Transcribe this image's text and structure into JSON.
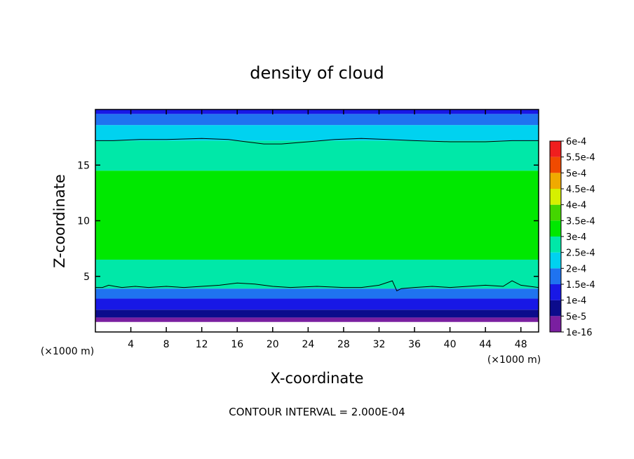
{
  "chart_data": {
    "type": "heatmap",
    "title": "density of cloud",
    "xlabel": "X-coordinate",
    "ylabel": "Z-coordinate",
    "x_unit": "(×1000 m)",
    "z_unit": "(×1000 m)",
    "xlim": [
      0,
      50
    ],
    "zlim": [
      0,
      20
    ],
    "x_ticks": [
      4,
      8,
      12,
      16,
      20,
      24,
      28,
      32,
      36,
      40,
      44,
      48
    ],
    "z_ticks": [
      5,
      10,
      15
    ],
    "footer": "CONTOUR INTERVAL = 2.000E-04",
    "colorbar": {
      "levels": [
        "1e-16",
        "5e-5",
        "1e-4",
        "1.5e-4",
        "2e-4",
        "2.5e-4",
        "3e-4",
        "3.5e-4",
        "4e-4",
        "4.5e-4",
        "5e-4",
        "5.5e-4",
        "6e-4"
      ],
      "colors": [
        "#7a1fa0",
        "#0c0c8c",
        "#1818e6",
        "#1f73f0",
        "#00d2f0",
        "#00e8a8",
        "#00e800",
        "#44d600",
        "#d6f000",
        "#f0aa00",
        "#f04a00",
        "#f01e1e",
        "#f08a8a"
      ]
    },
    "contours": [
      {
        "value": "2.000E-04",
        "points": [
          [
            0,
            17.2
          ],
          [
            2,
            17.2
          ],
          [
            5,
            17.3
          ],
          [
            8,
            17.3
          ],
          [
            12,
            17.4
          ],
          [
            15,
            17.3
          ],
          [
            17,
            17.1
          ],
          [
            19,
            16.9
          ],
          [
            21,
            16.9
          ],
          [
            24,
            17.1
          ],
          [
            27,
            17.3
          ],
          [
            30,
            17.4
          ],
          [
            33,
            17.3
          ],
          [
            36,
            17.2
          ],
          [
            40,
            17.1
          ],
          [
            44,
            17.1
          ],
          [
            47,
            17.2
          ],
          [
            50,
            17.2
          ]
        ]
      },
      {
        "value": "2.000E-04",
        "points": [
          [
            0,
            4.0
          ],
          [
            0.8,
            4.0
          ],
          [
            1.5,
            4.2
          ],
          [
            2.2,
            4.1
          ],
          [
            3,
            4.0
          ],
          [
            4.5,
            4.1
          ],
          [
            6,
            4.0
          ],
          [
            8,
            4.1
          ],
          [
            10,
            4.0
          ],
          [
            12,
            4.1
          ],
          [
            14,
            4.2
          ],
          [
            16,
            4.4
          ],
          [
            18,
            4.3
          ],
          [
            20,
            4.1
          ],
          [
            22,
            4.0
          ],
          [
            25,
            4.1
          ],
          [
            28,
            4.0
          ],
          [
            30,
            4.0
          ],
          [
            32,
            4.2
          ],
          [
            33.5,
            4.6
          ],
          [
            34,
            3.7
          ],
          [
            34.5,
            3.9
          ],
          [
            36,
            4.0
          ],
          [
            38,
            4.1
          ],
          [
            40,
            4.0
          ],
          [
            42,
            4.1
          ],
          [
            44,
            4.2
          ],
          [
            46,
            4.1
          ],
          [
            47,
            4.6
          ],
          [
            48,
            4.2
          ],
          [
            50,
            4.0
          ]
        ]
      }
    ],
    "field": {
      "description_levels": "cloud density bands by height",
      "bands": [
        {
          "z_from": 0.9,
          "z_to": 1.3,
          "level_index": 0
        },
        {
          "z_from": 1.3,
          "z_to": 2.0,
          "level_index": 1
        },
        {
          "z_from": 2.0,
          "z_to": 3.0,
          "level_index": 2
        },
        {
          "z_from": 3.0,
          "z_to": 3.9,
          "level_index": 3
        },
        {
          "z_from": 3.9,
          "z_to": 6.5,
          "level_index": 5
        },
        {
          "z_from": 6.5,
          "z_to": 14.5,
          "level_index": 6
        },
        {
          "z_from": 14.5,
          "z_to": 17.2,
          "level_index": 5
        },
        {
          "z_from": 17.2,
          "z_to": 18.6,
          "level_index": 4
        },
        {
          "z_from": 18.6,
          "z_to": 19.6,
          "level_index": 3
        },
        {
          "z_from": 19.6,
          "z_to": 20.0,
          "level_index": 2
        }
      ]
    }
  }
}
